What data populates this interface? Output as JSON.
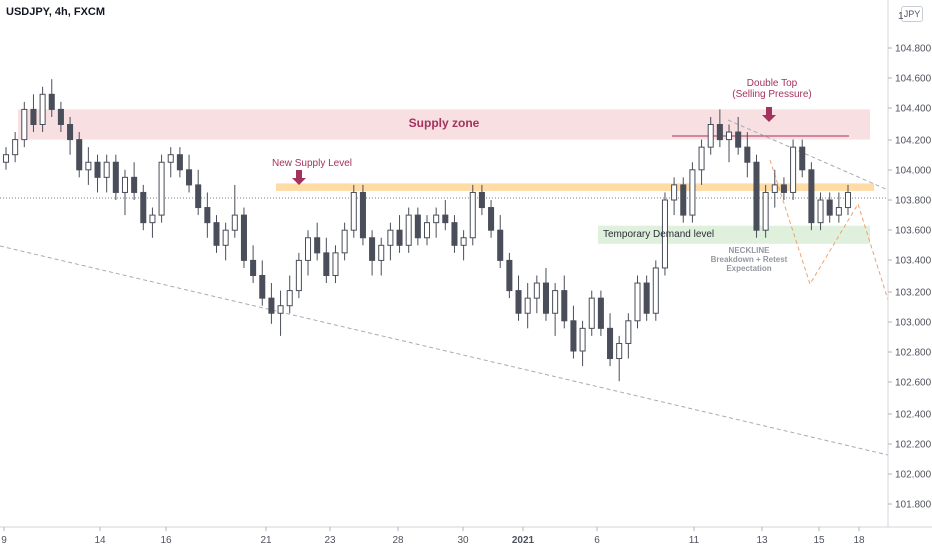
{
  "header": {
    "symbol": "USDJPY, 4h, FXCM",
    "currency": "JPY",
    "top_tick": "1"
  },
  "colors": {
    "candle_up": "#ffffff",
    "candle_down": "#4a4e5a",
    "outline": "#4a4e5a",
    "supply_zone": "#f8dfe1",
    "demand_zone": "#dff0dc",
    "supply_level": "#ffd9a1",
    "annotation": "#a3325e",
    "neckline": "#9598a1",
    "projection": "#f0a070",
    "trend": "#a8abb5"
  },
  "chart_data": {
    "type": "candlestick",
    "y_axis": {
      "ticks": [
        "104.800",
        "104.600",
        "104.400",
        "104.200",
        "104.000",
        "103.800",
        "103.600",
        "103.400",
        "103.200",
        "103.000",
        "102.800",
        "102.600",
        "102.400",
        "102.200",
        "102.000",
        "101.800"
      ],
      "range": [
        101.6,
        105.0
      ],
      "side": "right"
    },
    "x_axis": {
      "ticks": [
        "9",
        "14",
        "16",
        "21",
        "23",
        "28",
        "30",
        "2021",
        "6",
        "11",
        "13",
        "15",
        "18"
      ]
    },
    "zones": [
      {
        "name": "Supply zone",
        "label": "Supply zone",
        "low": 104.2,
        "high": 104.4
      },
      {
        "name": "New Supply Level",
        "label": "New Supply Level",
        "low": 103.86,
        "high": 103.91
      },
      {
        "name": "Temporary Demand level",
        "label": "Temporary Demand level",
        "low": 103.51,
        "high": 103.63
      }
    ],
    "annotations": [
      {
        "text": "Double Top",
        "text2": "(Selling Pressure)"
      },
      {
        "text": "NECKLINE",
        "text2": "Breakdown + Retest",
        "text3": "Expectation"
      }
    ],
    "candles": [
      [
        104.05,
        104.15,
        104.0,
        104.1
      ],
      [
        104.1,
        104.25,
        104.05,
        104.2
      ],
      [
        104.2,
        104.45,
        104.15,
        104.4
      ],
      [
        104.4,
        104.5,
        104.25,
        104.3
      ],
      [
        104.3,
        104.55,
        104.25,
        104.5
      ],
      [
        104.5,
        104.6,
        104.35,
        104.4
      ],
      [
        104.4,
        104.45,
        104.25,
        104.3
      ],
      [
        104.3,
        104.35,
        104.1,
        104.2
      ],
      [
        104.2,
        104.25,
        103.95,
        104.0
      ],
      [
        104.0,
        104.15,
        103.9,
        104.05
      ],
      [
        104.05,
        104.1,
        103.85,
        103.95
      ],
      [
        103.95,
        104.1,
        103.85,
        104.05
      ],
      [
        104.05,
        104.1,
        103.8,
        103.85
      ],
      [
        103.85,
        104.0,
        103.7,
        103.95
      ],
      [
        103.95,
        104.05,
        103.8,
        103.85
      ],
      [
        103.85,
        103.9,
        103.6,
        103.65
      ],
      [
        103.65,
        103.75,
        103.55,
        103.7
      ],
      [
        103.7,
        104.1,
        103.65,
        104.05
      ],
      [
        104.05,
        104.15,
        103.95,
        104.1
      ],
      [
        104.1,
        104.15,
        103.95,
        104.0
      ],
      [
        104.0,
        104.1,
        103.85,
        103.9
      ],
      [
        103.9,
        104.0,
        103.7,
        103.75
      ],
      [
        103.75,
        103.85,
        103.55,
        103.65
      ],
      [
        103.65,
        103.7,
        103.45,
        103.5
      ],
      [
        103.5,
        103.65,
        103.4,
        103.6
      ],
      [
        103.6,
        103.9,
        103.55,
        103.7
      ],
      [
        103.7,
        103.75,
        103.35,
        103.4
      ],
      [
        103.4,
        103.5,
        103.25,
        103.3
      ],
      [
        103.3,
        103.4,
        103.1,
        103.15
      ],
      [
        103.15,
        103.25,
        102.98,
        103.05
      ],
      [
        103.05,
        103.2,
        102.9,
        103.1
      ],
      [
        103.1,
        103.3,
        103.05,
        103.2
      ],
      [
        103.2,
        103.45,
        103.15,
        103.4
      ],
      [
        103.4,
        103.6,
        103.3,
        103.55
      ],
      [
        103.55,
        103.65,
        103.4,
        103.45
      ],
      [
        103.45,
        103.55,
        103.25,
        103.3
      ],
      [
        103.3,
        103.5,
        103.25,
        103.45
      ],
      [
        103.45,
        103.65,
        103.4,
        103.6
      ],
      [
        103.6,
        103.9,
        103.55,
        103.85
      ],
      [
        103.85,
        103.9,
        103.5,
        103.55
      ],
      [
        103.55,
        103.6,
        103.3,
        103.4
      ],
      [
        103.4,
        103.55,
        103.3,
        103.5
      ],
      [
        103.5,
        103.65,
        103.4,
        103.6
      ],
      [
        103.6,
        103.7,
        103.45,
        103.5
      ],
      [
        103.5,
        103.75,
        103.45,
        103.7
      ],
      [
        103.7,
        103.75,
        103.5,
        103.55
      ],
      [
        103.55,
        103.7,
        103.5,
        103.65
      ],
      [
        103.65,
        103.75,
        103.55,
        103.7
      ],
      [
        103.7,
        103.8,
        103.6,
        103.65
      ],
      [
        103.65,
        103.7,
        103.45,
        103.5
      ],
      [
        103.5,
        103.6,
        103.4,
        103.55
      ],
      [
        103.55,
        103.9,
        103.5,
        103.85
      ],
      [
        103.85,
        103.9,
        103.7,
        103.75
      ],
      [
        103.75,
        103.8,
        103.55,
        103.6
      ],
      [
        103.6,
        103.7,
        103.35,
        103.4
      ],
      [
        103.4,
        103.45,
        103.15,
        103.2
      ],
      [
        103.2,
        103.3,
        103.0,
        103.05
      ],
      [
        103.05,
        103.25,
        102.95,
        103.15
      ],
      [
        103.15,
        103.3,
        103.05,
        103.25
      ],
      [
        103.25,
        103.35,
        103.0,
        103.05
      ],
      [
        103.05,
        103.25,
        102.9,
        103.2
      ],
      [
        103.2,
        103.3,
        102.95,
        103.0
      ],
      [
        103.0,
        103.1,
        102.75,
        102.8
      ],
      [
        102.8,
        103.0,
        102.7,
        102.95
      ],
      [
        102.95,
        103.2,
        102.9,
        103.15
      ],
      [
        103.15,
        103.2,
        102.9,
        102.95
      ],
      [
        102.95,
        103.05,
        102.7,
        102.75
      ],
      [
        102.75,
        102.9,
        102.6,
        102.85
      ],
      [
        102.85,
        103.05,
        102.75,
        103.0
      ],
      [
        103.0,
        103.3,
        102.95,
        103.25
      ],
      [
        103.25,
        103.3,
        103.0,
        103.05
      ],
      [
        103.05,
        103.4,
        103.0,
        103.35
      ],
      [
        103.35,
        103.85,
        103.3,
        103.8
      ],
      [
        103.8,
        103.95,
        103.7,
        103.9
      ],
      [
        103.9,
        103.95,
        103.65,
        103.7
      ],
      [
        103.7,
        104.05,
        103.65,
        104.0
      ],
      [
        104.0,
        104.2,
        103.9,
        104.15
      ],
      [
        104.15,
        104.35,
        104.1,
        104.3
      ],
      [
        104.3,
        104.4,
        104.15,
        104.2
      ],
      [
        104.2,
        104.3,
        104.05,
        104.25
      ],
      [
        104.25,
        104.35,
        104.1,
        104.15
      ],
      [
        104.15,
        104.25,
        103.95,
        104.05
      ],
      [
        104.05,
        104.1,
        103.55,
        103.6
      ],
      [
        103.6,
        103.9,
        103.55,
        103.85
      ],
      [
        103.85,
        104.0,
        103.75,
        103.9
      ],
      [
        103.9,
        103.95,
        103.8,
        103.85
      ],
      [
        103.85,
        104.2,
        103.8,
        104.15
      ],
      [
        104.15,
        104.2,
        103.95,
        104.0
      ],
      [
        104.0,
        104.05,
        103.6,
        103.65
      ],
      [
        103.65,
        103.85,
        103.6,
        103.8
      ],
      [
        103.8,
        103.85,
        103.65,
        103.7
      ],
      [
        103.7,
        103.85,
        103.65,
        103.75
      ],
      [
        103.75,
        103.9,
        103.7,
        103.85
      ]
    ]
  }
}
